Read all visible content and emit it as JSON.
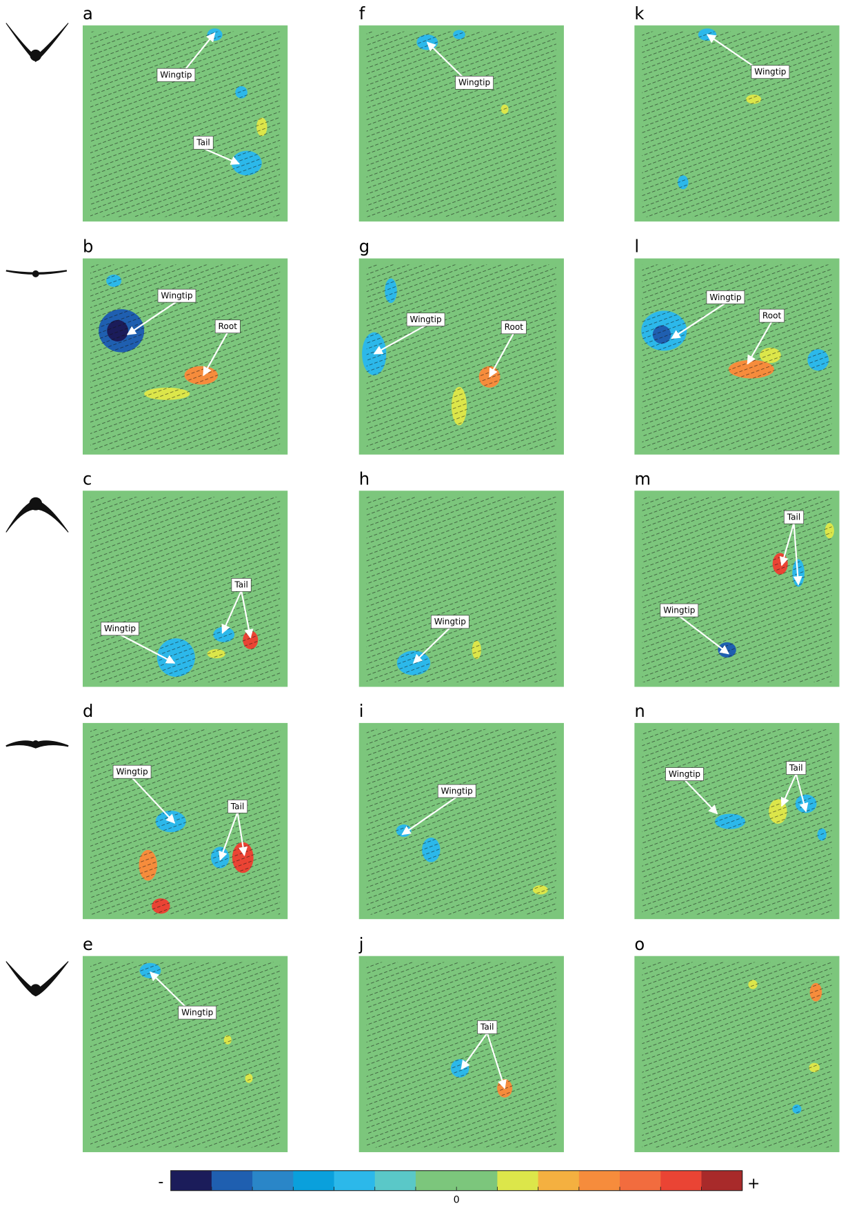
{
  "panels": [
    {
      "letter": "a",
      "annotations": [
        "Wingtip",
        "Tail"
      ]
    },
    {
      "letter": "b",
      "annotations": [
        "Wingtip",
        "Root"
      ]
    },
    {
      "letter": "c",
      "annotations": [
        "Tail",
        "Wingtip"
      ]
    },
    {
      "letter": "d",
      "annotations": [
        "Wingtip",
        "Tail"
      ]
    },
    {
      "letter": "e",
      "annotations": [
        "Wingtip"
      ]
    },
    {
      "letter": "f",
      "annotations": [
        "Wingtip"
      ]
    },
    {
      "letter": "g",
      "annotations": [
        "Wingtip",
        "Root"
      ]
    },
    {
      "letter": "h",
      "annotations": [
        "Wingtip"
      ]
    },
    {
      "letter": "i",
      "annotations": [
        "Wingtip"
      ]
    },
    {
      "letter": "j",
      "annotations": [
        "Tail"
      ]
    },
    {
      "letter": "k",
      "annotations": [
        "Wingtip"
      ]
    },
    {
      "letter": "l",
      "annotations": [
        "Wingtip",
        "Root"
      ]
    },
    {
      "letter": "m",
      "annotations": [
        "Tail",
        "Wingtip"
      ]
    },
    {
      "letter": "n",
      "annotations": [
        "Wingtip",
        "Tail"
      ]
    },
    {
      "letter": "o",
      "annotations": []
    }
  ],
  "colorbar": {
    "negative": "-",
    "positive": "+",
    "zero": "0",
    "colors": [
      "#1b1c5a",
      "#1f5fb0",
      "#2a86c8",
      "#0aa0dc",
      "#2cb8ea",
      "#5ac8c8",
      "#7cc67c",
      "#7cc67c",
      "#dce64a",
      "#f4b040",
      "#f68c3c",
      "#f26c3e",
      "#ea4434",
      "#a82a2a"
    ]
  }
}
